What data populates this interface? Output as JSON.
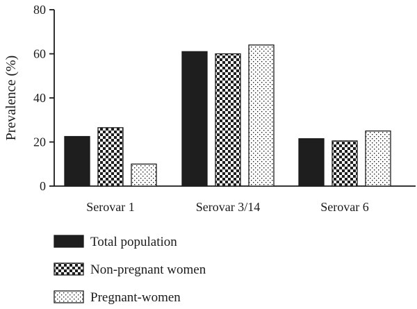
{
  "chart_data": {
    "type": "bar",
    "title": "",
    "xlabel": "",
    "ylabel": "Prevalence (%)",
    "ylim": [
      0,
      80
    ],
    "yticks": [
      0,
      20,
      40,
      60,
      80
    ],
    "grid": false,
    "legend_position": "bottom-left",
    "categories": [
      "Serovar 1",
      "Serovar 3/14",
      "Serovar 6"
    ],
    "series": [
      {
        "name": "Total population",
        "values": [
          22.5,
          61,
          21.5
        ],
        "pattern": "solid",
        "color": "#1e1e1e"
      },
      {
        "name": "Non-pregnant women",
        "values": [
          26.5,
          60,
          20.5
        ],
        "pattern": "checker",
        "color": "#1e1e1e"
      },
      {
        "name": "Pregnant-women",
        "values": [
          10,
          64,
          25
        ],
        "pattern": "dots",
        "color": "#1e1e1e"
      }
    ]
  }
}
